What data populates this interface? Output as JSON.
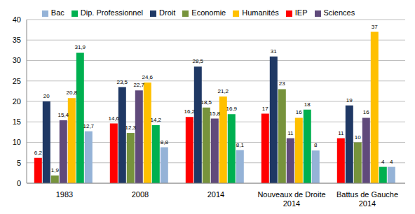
{
  "chart_data": {
    "type": "bar",
    "categories": [
      "1983",
      "2008",
      "2014",
      "Nouveaux de Droite 2014",
      "Battus de Gauche 2014"
    ],
    "series": [
      {
        "name": "IEP",
        "color": "#ff0000",
        "values": [
          6.2,
          14.6,
          16.2,
          17,
          11
        ],
        "value_labels": [
          "6,2",
          "14,6",
          "16,2",
          "17",
          "11"
        ]
      },
      {
        "name": "Droit",
        "color": "#1f3864",
        "values": [
          20,
          23.5,
          28.5,
          31,
          19
        ],
        "value_labels": [
          "20",
          "23,5",
          "28,5",
          "31",
          "19"
        ]
      },
      {
        "name": "Economie",
        "color": "#77933c",
        "values": [
          1.9,
          12.3,
          18.5,
          23,
          10
        ],
        "value_labels": [
          "1,9",
          "12,3",
          "18,5",
          "23",
          "10"
        ]
      },
      {
        "name": "Sciences",
        "color": "#604a7b",
        "values": [
          15.4,
          22.7,
          15.8,
          11,
          16
        ],
        "value_labels": [
          "15,4",
          "22,7",
          "15,8",
          "11",
          "16"
        ]
      },
      {
        "name": "Humanités",
        "color": "#ffc000",
        "values": [
          20.8,
          24.6,
          21.2,
          16,
          37
        ],
        "value_labels": [
          "20,8",
          "24,6",
          "21,2",
          "16",
          "37"
        ]
      },
      {
        "name": "Dip. Professionnel",
        "color": "#00b050",
        "values": [
          31.9,
          14.2,
          16.9,
          18,
          4
        ],
        "value_labels": [
          "31,9",
          "14,2",
          "16,9",
          "18",
          "4"
        ]
      },
      {
        "name": "Bac",
        "color": "#95b3d7",
        "values": [
          12.7,
          8.8,
          8.1,
          8,
          4
        ],
        "value_labels": [
          "12,7",
          "8,8",
          "8,1",
          "8",
          "4"
        ]
      }
    ],
    "ylim": [
      0,
      40
    ],
    "yticks": [
      0,
      5,
      10,
      15,
      20,
      25,
      30,
      35,
      40
    ],
    "grid": true,
    "legend": "top",
    "data_labels": true
  }
}
